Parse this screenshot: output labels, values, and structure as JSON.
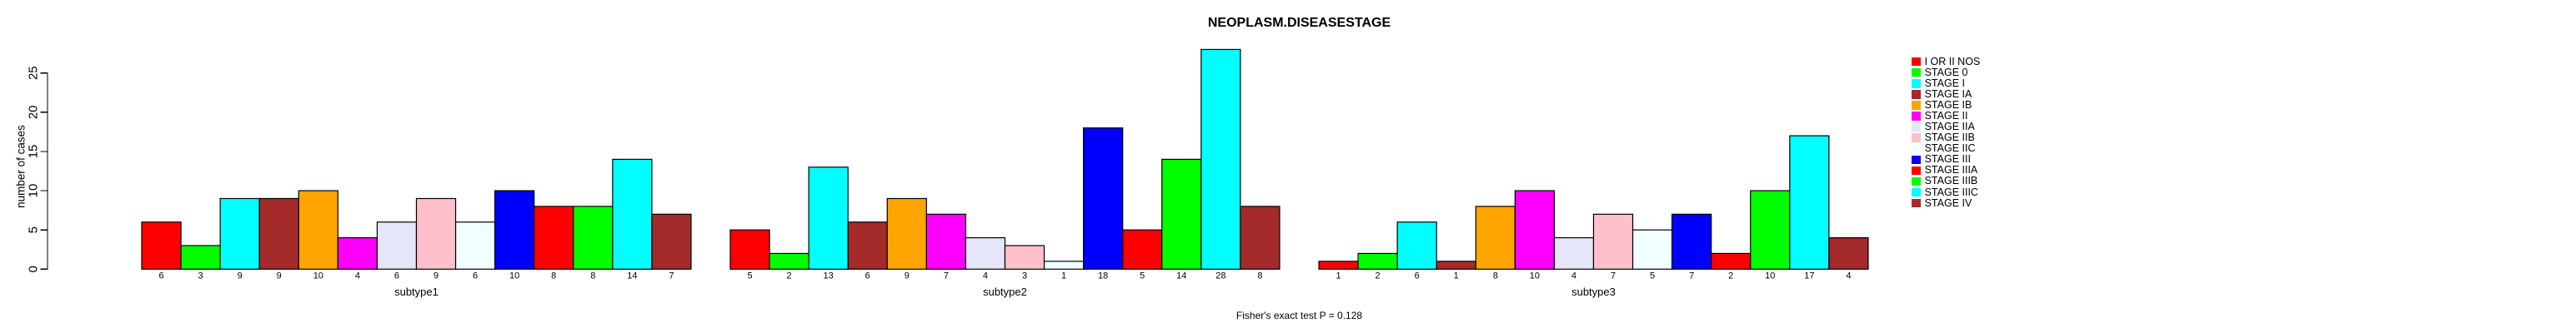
{
  "title": "NEOPLASM.DISEASESTAGE",
  "footer": "Fisher's exact test P = 0.128",
  "chart_data": {
    "type": "bar",
    "title": "NEOPLASM.DISEASESTAGE",
    "ylabel": "number of cases",
    "xlabel": "",
    "ylim": [
      0,
      25
    ],
    "yticks": [
      0,
      5,
      10,
      15,
      20,
      25
    ],
    "grid": false,
    "legend_position": "right",
    "bar_border_color": "#000000",
    "categories": [
      "I OR II NOS",
      "STAGE 0",
      "STAGE I",
      "STAGE IA",
      "STAGE IB",
      "STAGE II",
      "STAGE IIA",
      "STAGE IIB",
      "STAGE IIC",
      "STAGE III",
      "STAGE IIIA",
      "STAGE IIIB",
      "STAGE IIIC",
      "STAGE IV"
    ],
    "colors": [
      "#FF0000",
      "#00FF00",
      "#00FFFF",
      "#A52A2A",
      "#FFA500",
      "#FF00FF",
      "#E6E6FA",
      "#FFC0CB",
      "#F0FFFF",
      "#0000FF",
      "#FF0000",
      "#00FF00",
      "#00FFFF",
      "#A52A2A"
    ],
    "series": [
      {
        "name": "subtype1",
        "values": [
          6,
          3,
          9,
          9,
          10,
          4,
          6,
          9,
          6,
          10,
          8,
          8,
          14,
          7
        ]
      },
      {
        "name": "subtype2",
        "values": [
          5,
          2,
          13,
          6,
          9,
          7,
          4,
          3,
          1,
          18,
          5,
          14,
          28,
          8
        ]
      },
      {
        "name": "subtype3",
        "values": [
          1,
          2,
          6,
          1,
          8,
          10,
          4,
          7,
          5,
          7,
          2,
          10,
          17,
          4
        ]
      }
    ],
    "annotation": "Fisher's exact test P = 0.128"
  }
}
